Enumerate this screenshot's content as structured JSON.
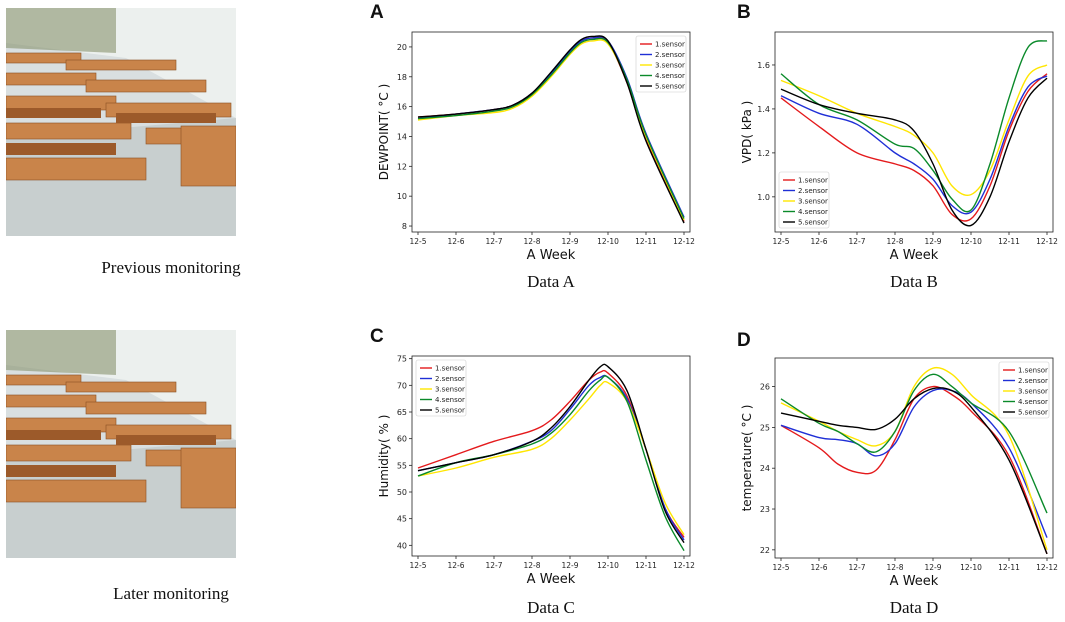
{
  "photos": [
    {
      "caption": "Previous monitoring"
    },
    {
      "caption": "Later monitoring"
    }
  ],
  "series_names": [
    "1.sensor",
    "2.sensor",
    "3.sensor",
    "4.sensor",
    "5.sensor"
  ],
  "series_colors": [
    "#e41a1c",
    "#1f2fd6",
    "#ffe600",
    "#0a8a2a",
    "#000000"
  ],
  "chart_data": [
    {
      "letter": "A",
      "caption": "Data A",
      "type": "line",
      "xlabel": "A Week",
      "ylabel": "DEWPOINT( °C )",
      "xticks": [
        "12-5",
        "12-6",
        "12-7",
        "12-8",
        "12-9",
        "12-10",
        "12-11",
        "12-12"
      ],
      "xlim": [
        0,
        7
      ],
      "ylim": [
        7.6,
        21
      ],
      "yticks": [
        8,
        10,
        12,
        14,
        16,
        18,
        20
      ],
      "legend": "top-right",
      "series": [
        {
          "name": "1.sensor",
          "x": [
            0,
            1,
            2,
            2.5,
            3,
            3.5,
            4,
            4.3,
            4.6,
            5,
            5.5,
            6,
            7
          ],
          "values": [
            15.3,
            15.5,
            15.8,
            16.1,
            16.9,
            18.2,
            19.7,
            20.4,
            20.6,
            20.3,
            17.6,
            13.8,
            8.3
          ]
        },
        {
          "name": "2.sensor",
          "x": [
            0,
            1,
            2,
            2.5,
            3,
            3.5,
            4,
            4.3,
            4.6,
            5,
            5.5,
            6,
            7
          ],
          "values": [
            15.2,
            15.5,
            15.8,
            16.1,
            16.9,
            18.2,
            19.7,
            20.4,
            20.6,
            20.4,
            17.9,
            14.2,
            8.6
          ]
        },
        {
          "name": "3.sensor",
          "x": [
            0,
            1,
            2,
            2.5,
            3,
            3.5,
            4,
            4.3,
            4.6,
            5,
            5.5,
            6,
            7
          ],
          "values": [
            15.1,
            15.4,
            15.6,
            15.9,
            16.7,
            18.0,
            19.5,
            20.2,
            20.4,
            20.2,
            17.7,
            14.0,
            8.4
          ]
        },
        {
          "name": "4.sensor",
          "x": [
            0,
            1,
            2,
            2.5,
            3,
            3.5,
            4,
            4.3,
            4.6,
            5,
            5.5,
            6,
            7
          ],
          "values": [
            15.2,
            15.4,
            15.7,
            16.0,
            16.8,
            18.1,
            19.6,
            20.3,
            20.5,
            20.3,
            17.8,
            14.1,
            8.5
          ]
        },
        {
          "name": "5.sensor",
          "x": [
            0,
            1,
            2,
            2.5,
            3,
            3.5,
            4,
            4.3,
            4.6,
            5,
            5.5,
            6,
            7
          ],
          "values": [
            15.3,
            15.5,
            15.8,
            16.1,
            16.9,
            18.3,
            19.8,
            20.5,
            20.7,
            20.4,
            17.6,
            13.7,
            8.2
          ]
        }
      ]
    },
    {
      "letter": "B",
      "caption": "Data B",
      "type": "line",
      "xlabel": "A Week",
      "ylabel": "VPD( kPa )",
      "xticks": [
        "12-5",
        "12-6",
        "12-7",
        "12-8",
        "12-9",
        "12-10",
        "12-11",
        "12-12"
      ],
      "xlim": [
        0,
        7
      ],
      "ylim": [
        0.84,
        1.75
      ],
      "yticks": [
        1.0,
        1.2,
        1.4,
        1.6
      ],
      "legend": "bottom-left",
      "series": [
        {
          "name": "1.sensor",
          "x": [
            0,
            1,
            2,
            3,
            3.5,
            4,
            4.5,
            5,
            5.5,
            6,
            6.5,
            7
          ],
          "values": [
            1.45,
            1.32,
            1.2,
            1.15,
            1.12,
            1.05,
            0.92,
            0.9,
            1.05,
            1.3,
            1.48,
            1.56
          ]
        },
        {
          "name": "2.sensor",
          "x": [
            0,
            1,
            2,
            3,
            3.5,
            4,
            4.5,
            5,
            5.5,
            6,
            6.5,
            7
          ],
          "values": [
            1.46,
            1.38,
            1.33,
            1.2,
            1.15,
            1.08,
            0.96,
            0.93,
            1.08,
            1.32,
            1.5,
            1.55
          ]
        },
        {
          "name": "3.sensor",
          "x": [
            0,
            1,
            2,
            3,
            3.5,
            4,
            4.5,
            5,
            5.5,
            6,
            6.5,
            7
          ],
          "values": [
            1.53,
            1.46,
            1.38,
            1.32,
            1.28,
            1.2,
            1.05,
            1.01,
            1.12,
            1.35,
            1.55,
            1.6
          ]
        },
        {
          "name": "4.sensor",
          "x": [
            0,
            1,
            2,
            3,
            3.5,
            4,
            4.5,
            5,
            5.5,
            6,
            6.5,
            7
          ],
          "values": [
            1.56,
            1.42,
            1.35,
            1.24,
            1.22,
            1.12,
            0.99,
            0.94,
            1.15,
            1.45,
            1.68,
            1.71
          ]
        },
        {
          "name": "5.sensor",
          "x": [
            0,
            1,
            2,
            3,
            3.5,
            4,
            4.5,
            5,
            5.5,
            6,
            6.5,
            7
          ],
          "values": [
            1.49,
            1.42,
            1.38,
            1.35,
            1.3,
            1.15,
            0.94,
            0.87,
            1.0,
            1.25,
            1.45,
            1.54
          ]
        }
      ]
    },
    {
      "letter": "C",
      "caption": "Data C",
      "type": "line",
      "xlabel": "A Week",
      "ylabel": "Humidity( % )",
      "xticks": [
        "12-5",
        "12-6",
        "12-7",
        "12-8",
        "12-9",
        "12-10",
        "12-11",
        "12-12"
      ],
      "xlim": [
        0,
        7
      ],
      "ylim": [
        38,
        75.5
      ],
      "yticks": [
        40,
        45,
        50,
        55,
        60,
        65,
        70,
        75
      ],
      "legend": "top-left",
      "series": [
        {
          "name": "1.sensor",
          "x": [
            0,
            1,
            2,
            3,
            3.5,
            4,
            4.5,
            4.8,
            5,
            5.5,
            6,
            6.5,
            7
          ],
          "values": [
            54.5,
            57,
            59.5,
            61.5,
            63.5,
            67,
            71,
            72.5,
            72.3,
            68,
            58,
            47,
            41.5
          ]
        },
        {
          "name": "2.sensor",
          "x": [
            0,
            1,
            2,
            3,
            3.5,
            4,
            4.5,
            4.8,
            5,
            5.5,
            6,
            6.5,
            7
          ],
          "values": [
            54,
            55.5,
            57,
            59.5,
            61.5,
            65.5,
            70,
            71.5,
            71.5,
            67.5,
            58,
            47,
            41
          ]
        },
        {
          "name": "3.sensor",
          "x": [
            0,
            1,
            2,
            3,
            3.5,
            4,
            4.5,
            4.8,
            5,
            5.5,
            6,
            6.5,
            7
          ],
          "values": [
            53,
            54.5,
            56.5,
            58,
            60,
            63.5,
            67.5,
            70,
            70.5,
            67,
            58,
            48,
            42
          ]
        },
        {
          "name": "4.sensor",
          "x": [
            0,
            1,
            2,
            3,
            3.5,
            4,
            4.5,
            4.8,
            5,
            5.5,
            6,
            6.5,
            7
          ],
          "values": [
            53,
            55.5,
            57,
            59,
            61,
            64.5,
            69,
            71,
            71.5,
            67,
            56,
            45.5,
            39
          ]
        },
        {
          "name": "5.sensor",
          "x": [
            0,
            1,
            2,
            3,
            3.5,
            4,
            4.5,
            4.8,
            5,
            5.5,
            6,
            6.5,
            7
          ],
          "values": [
            54,
            55.5,
            57,
            59.5,
            62,
            66,
            71,
            73.5,
            73.5,
            69,
            58,
            46.5,
            40.5
          ]
        }
      ]
    },
    {
      "letter": "D",
      "caption": "Data D",
      "type": "line",
      "xlabel": "A Week",
      "ylabel": "temperature( °C )",
      "xticks": [
        "12-5",
        "12-6",
        "12-7",
        "12-8",
        "12-9",
        "12-10",
        "12-11",
        "12-12"
      ],
      "xlim": [
        0,
        7
      ],
      "ylim": [
        21.8,
        26.7
      ],
      "yticks": [
        22,
        23,
        24,
        25,
        26
      ],
      "legend": "top-right",
      "series": [
        {
          "name": "1.sensor",
          "x": [
            0,
            1,
            1.5,
            2,
            2.5,
            3,
            3.5,
            4,
            4.5,
            5,
            6,
            7
          ],
          "values": [
            25.05,
            24.5,
            24.1,
            23.9,
            23.95,
            24.7,
            25.7,
            26.0,
            25.8,
            25.4,
            24.3,
            21.9
          ]
        },
        {
          "name": "2.sensor",
          "x": [
            0,
            1,
            1.5,
            2,
            2.5,
            3,
            3.5,
            4,
            4.5,
            5,
            6,
            7
          ],
          "values": [
            25.05,
            24.75,
            24.7,
            24.6,
            24.3,
            24.6,
            25.5,
            25.9,
            25.9,
            25.6,
            24.5,
            22.3
          ]
        },
        {
          "name": "3.sensor",
          "x": [
            0,
            1,
            1.5,
            2,
            2.5,
            3,
            3.5,
            4,
            4.5,
            5,
            6,
            7
          ],
          "values": [
            25.6,
            25.15,
            24.9,
            24.7,
            24.55,
            24.9,
            26.0,
            26.45,
            26.3,
            25.8,
            24.8,
            22.0
          ]
        },
        {
          "name": "4.sensor",
          "x": [
            0,
            1,
            1.5,
            2,
            2.5,
            3,
            3.5,
            4,
            4.5,
            5,
            6,
            7
          ],
          "values": [
            25.7,
            25.1,
            24.9,
            24.6,
            24.4,
            24.9,
            25.9,
            26.3,
            26.0,
            25.6,
            24.9,
            22.9
          ]
        },
        {
          "name": "5.sensor",
          "x": [
            0,
            1,
            1.5,
            2,
            2.5,
            3,
            3.5,
            4,
            4.5,
            5,
            6,
            7
          ],
          "values": [
            25.35,
            25.15,
            25.05,
            25.0,
            24.95,
            25.2,
            25.7,
            25.95,
            25.9,
            25.5,
            24.2,
            21.9
          ]
        }
      ]
    }
  ]
}
